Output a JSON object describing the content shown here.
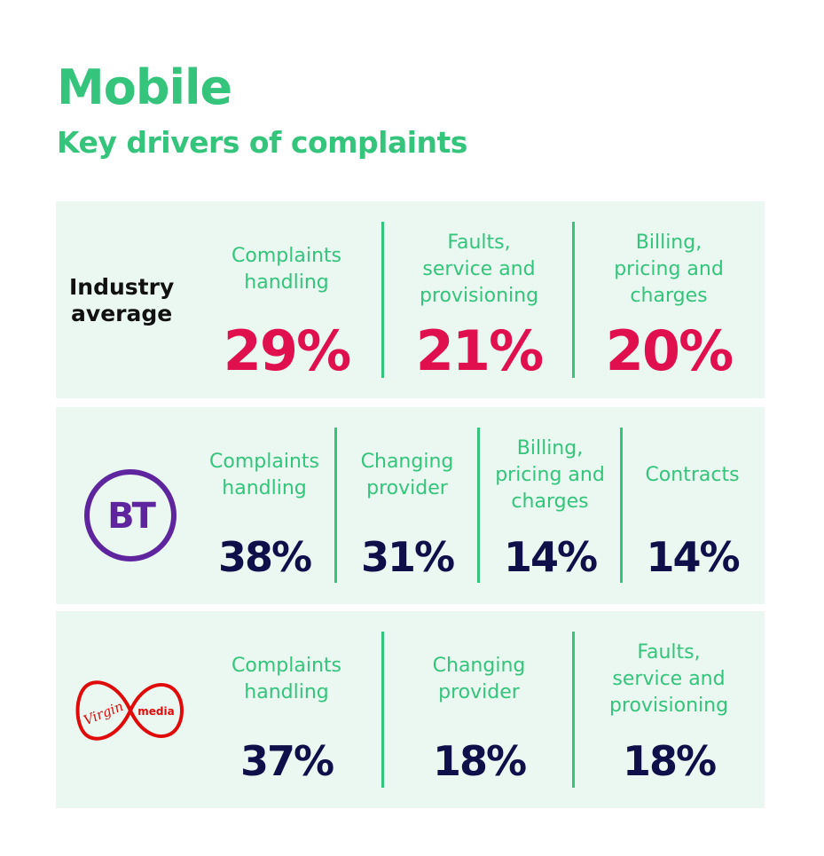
{
  "header": {
    "title": "Mobile",
    "subtitle": "Key drivers of complaints"
  },
  "colors": {
    "accent_green": "#34c47c",
    "industry_value": "#e0104f",
    "provider_value": "#0f0f4a",
    "panel_bg": "#ebf8f1",
    "bt_purple": "#5f259f",
    "virgin_red": "#e10a0a"
  },
  "industry": {
    "label_line1": "Industry",
    "label_line2": "average",
    "items": [
      {
        "label": "Complaints\nhandling",
        "value": "29%"
      },
      {
        "label": "Faults,\nservice and\nprovisioning",
        "value": "21%"
      },
      {
        "label": "Billing,\npricing and\ncharges",
        "value": "20%"
      }
    ]
  },
  "bt": {
    "logo_text": "BT",
    "items": [
      {
        "label": "Complaints\nhandling",
        "value": "38%"
      },
      {
        "label": "Changing\nprovider",
        "value": "31%"
      },
      {
        "label": "Billing,\npricing and\ncharges",
        "value": "14%"
      },
      {
        "label": "Contracts",
        "value": "14%"
      }
    ]
  },
  "virgin": {
    "logo_word1": "Virgin",
    "logo_word2": "media",
    "items": [
      {
        "label": "Complaints\nhandling",
        "value": "37%"
      },
      {
        "label": "Changing\nprovider",
        "value": "18%"
      },
      {
        "label": "Faults,\nservice and\nprovisioning",
        "value": "18%"
      }
    ]
  }
}
